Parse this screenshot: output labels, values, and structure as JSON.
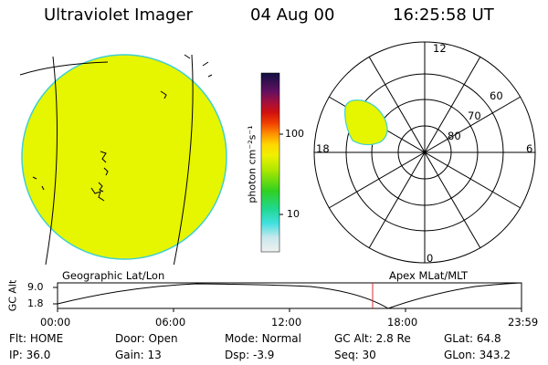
{
  "header": {
    "instrument": "Ultraviolet Imager",
    "date": "04 Aug 00",
    "time": "16:25:58 UT"
  },
  "colorbar": {
    "unit_label": "photon cm⁻²s⁻¹",
    "ticks": [
      "100",
      "10"
    ]
  },
  "polar_plot": {
    "mlt_labels": {
      "top": "12",
      "left": "18",
      "right": "6",
      "bottom": "0"
    },
    "lat_labels": [
      "60",
      "70",
      "80"
    ]
  },
  "panel_labels": {
    "geographic": "Geographic Lat/Lon",
    "apex": "Apex MLat/MLT"
  },
  "altitude_plot": {
    "axis_label": "GC Alt",
    "y_ticks": [
      "9.0",
      "1.8"
    ],
    "x_ticks": [
      "00:00",
      "06:00",
      "12:00",
      "18:00",
      "23:59"
    ]
  },
  "info": {
    "row1": [
      {
        "label": "Flt:",
        "value": "HOME"
      },
      {
        "label": "Door:",
        "value": "Open"
      },
      {
        "label": "Mode:",
        "value": "Normal"
      },
      {
        "label": "GC Alt:",
        "value": "2.8 Re"
      },
      {
        "label": "GLat:",
        "value": "64.8"
      }
    ],
    "row2": [
      {
        "label": "IP:",
        "value": "36.0"
      },
      {
        "label": "Gain:",
        "value": "13"
      },
      {
        "label": "Dsp:",
        "value": "-3.9"
      },
      {
        "label": "Seq:",
        "value": "30"
      },
      {
        "label": "GLon:",
        "value": "343.2"
      }
    ]
  },
  "colors": {
    "disk_fill": "#e6f500",
    "disk_edge": "#40d0d0",
    "current_time_marker": "#d03030"
  }
}
